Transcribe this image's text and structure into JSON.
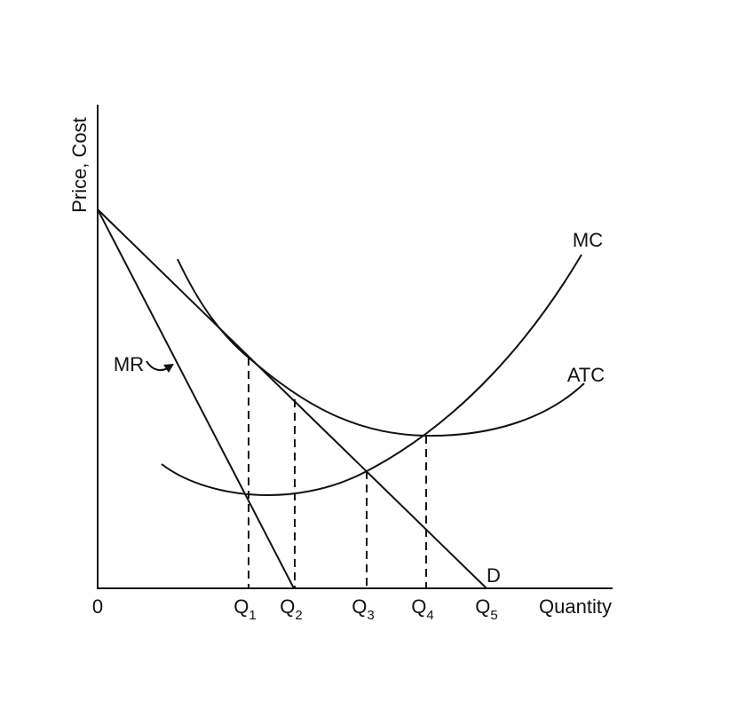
{
  "axes": {
    "y_label": "Price, Cost",
    "x_label": "Quantity",
    "origin": "0"
  },
  "quantities": [
    {
      "letter": "Q",
      "subscript": "1"
    },
    {
      "letter": "Q",
      "subscript": "2"
    },
    {
      "letter": "Q",
      "subscript": "3"
    },
    {
      "letter": "Q",
      "subscript": "4"
    },
    {
      "letter": "Q",
      "subscript": "5"
    }
  ],
  "curves": {
    "mc": "MC",
    "atc": "ATC",
    "mr": "MR",
    "demand": "D"
  }
}
